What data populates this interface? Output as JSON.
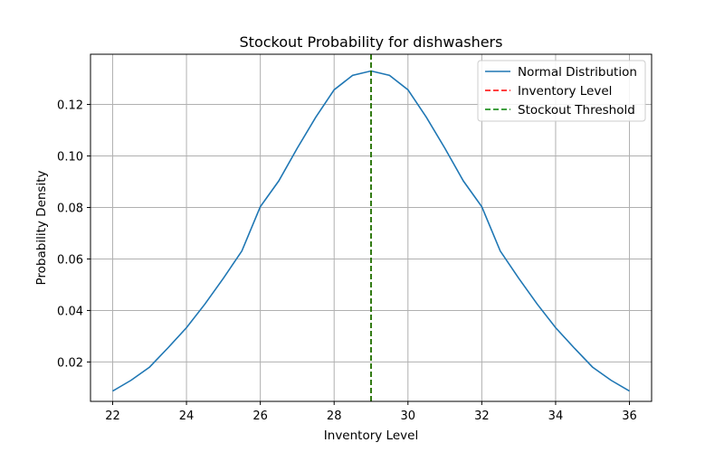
{
  "chart_data": {
    "type": "line",
    "title": "Stockout Probability for dishwashers",
    "xlabel": "Inventory Level",
    "ylabel": "Probability Density",
    "xlim": [
      21.4,
      36.6
    ],
    "ylim": [
      0.0047,
      0.1395
    ],
    "xticks": [
      22,
      24,
      26,
      28,
      30,
      32,
      34,
      36
    ],
    "yticks": [
      0.02,
      0.04,
      0.06,
      0.08,
      0.1,
      0.12
    ],
    "ytick_labels": [
      "0.02",
      "0.04",
      "0.06",
      "0.08",
      "0.10",
      "0.12"
    ],
    "grid": true,
    "legend_position": "top-right",
    "series": [
      {
        "name": "Normal Distribution",
        "color": "#1f77b4",
        "style": "solid",
        "kind": "curve",
        "x": [
          22,
          22.5,
          23,
          23.5,
          24,
          24.5,
          25,
          25.5,
          26,
          26.5,
          27,
          27.5,
          28,
          28.5,
          29,
          29.5,
          30,
          30.5,
          31,
          31.5,
          32,
          32.5,
          33,
          33.5,
          34,
          34.5,
          35,
          35.5,
          36
        ],
        "y": [
          0.0087,
          0.0129,
          0.018,
          0.0255,
          0.0333,
          0.0425,
          0.0525,
          0.0631,
          0.0803,
          0.0903,
          0.103,
          0.115,
          0.1257,
          0.1313,
          0.133,
          0.1313,
          0.1257,
          0.115,
          0.103,
          0.0903,
          0.0803,
          0.0631,
          0.0525,
          0.0425,
          0.0333,
          0.0255,
          0.018,
          0.0129,
          0.0087
        ]
      },
      {
        "name": "Inventory Level",
        "color": "#ff0000",
        "style": "dashed",
        "kind": "vline",
        "x": 29
      },
      {
        "name": "Stockout Threshold",
        "color": "#008000",
        "style": "dashed",
        "kind": "vline",
        "x": 29
      }
    ]
  }
}
